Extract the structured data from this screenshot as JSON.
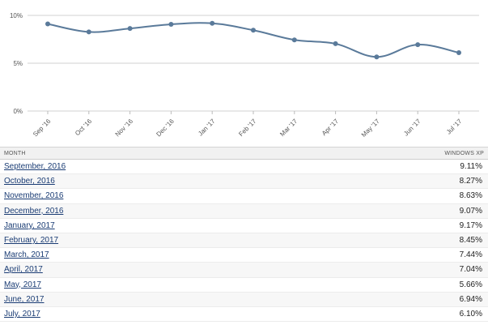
{
  "chart_data": {
    "type": "line",
    "title": "",
    "xlabel": "",
    "ylabel": "",
    "categories": [
      "Sep '16",
      "Oct '16",
      "Nov '16",
      "Dec '16",
      "Jan '17",
      "Feb '17",
      "Mar '17",
      "Apr '17",
      "May '17",
      "Jun '17",
      "Jul '17"
    ],
    "series": [
      {
        "values": [
          9.11,
          8.27,
          8.63,
          9.07,
          9.17,
          8.45,
          7.44,
          7.04,
          5.66,
          6.94,
          6.1
        ]
      }
    ],
    "ylim": [
      0,
      10
    ],
    "yticks": [
      "0%",
      "5%",
      "10%"
    ],
    "grid": true,
    "line_color": "#5a7a9a",
    "marker_color": "#5a7a9a"
  },
  "table": {
    "header": {
      "month": "MONTH",
      "value": "WINDOWS XP"
    },
    "rows": [
      {
        "month": "September, 2016",
        "value": "9.11%"
      },
      {
        "month": "October, 2016",
        "value": "8.27%"
      },
      {
        "month": "November, 2016",
        "value": "8.63%"
      },
      {
        "month": "December, 2016",
        "value": "9.07%"
      },
      {
        "month": "January, 2017",
        "value": "9.17%"
      },
      {
        "month": "February, 2017",
        "value": "8.45%"
      },
      {
        "month": "March, 2017",
        "value": "7.44%"
      },
      {
        "month": "April, 2017",
        "value": "7.04%"
      },
      {
        "month": "May, 2017",
        "value": "5.66%"
      },
      {
        "month": "June, 2017",
        "value": "6.94%"
      },
      {
        "month": "July, 2017",
        "value": "6.10%"
      }
    ]
  },
  "colors": {
    "link": "#1a3c74",
    "header_bg": "#f1f1f1",
    "grid": "#d0d0d0"
  }
}
